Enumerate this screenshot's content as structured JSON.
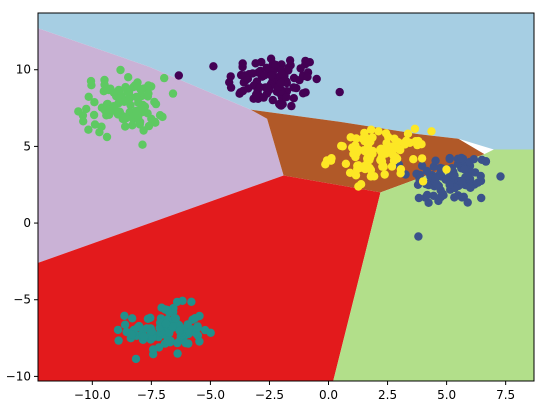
{
  "chart_data": {
    "type": "scatter",
    "title": "",
    "xlabel": "",
    "ylabel": "",
    "xlim": [
      -12.3,
      8.7
    ],
    "ylim": [
      -10.3,
      13.7
    ],
    "grid": false,
    "legend": "none",
    "x_ticks": [
      -10.0,
      -7.5,
      -5.0,
      -2.5,
      0.0,
      2.5,
      5.0,
      7.5
    ],
    "x_tick_labels": [
      "−10.0",
      "−7.5",
      "−5.0",
      "−2.5",
      "0.0",
      "2.5",
      "5.0",
      "7.5"
    ],
    "y_ticks": [
      10,
      5,
      0,
      -5,
      -10
    ],
    "y_tick_labels": [
      "10",
      "5",
      "0",
      "−5",
      "−10"
    ],
    "regions": [
      {
        "color": "#a6cee3",
        "polygon": [
          [
            -12.3,
            12.7
          ],
          [
            -7.6,
            10.2
          ],
          [
            -3.3,
            7.4
          ],
          [
            0.5,
            6.6
          ],
          [
            3.8,
            5.8
          ],
          [
            5.5,
            5.5
          ],
          [
            7.0,
            4.8
          ],
          [
            8.7,
            4.8
          ],
          [
            8.7,
            13.7
          ],
          [
            -12.3,
            13.7
          ]
        ]
      },
      {
        "color": "#cab2d6",
        "polygon": [
          [
            -12.3,
            12.7
          ],
          [
            -7.6,
            10.2
          ],
          [
            -3.3,
            7.4
          ],
          [
            -2.6,
            6.8
          ],
          [
            -1.9,
            3.1
          ],
          [
            -12.3,
            -2.6
          ]
        ]
      },
      {
        "color": "#b15928",
        "polygon": [
          [
            -3.3,
            7.4
          ],
          [
            0.5,
            6.6
          ],
          [
            3.8,
            5.8
          ],
          [
            5.5,
            5.5
          ],
          [
            6.6,
            4.5
          ],
          [
            2.2,
            2.0
          ],
          [
            -1.9,
            3.1
          ],
          [
            -2.6,
            6.8
          ]
        ]
      },
      {
        "color": "#e31a1c",
        "polygon": [
          [
            -12.3,
            -2.6
          ],
          [
            -1.9,
            3.1
          ],
          [
            2.2,
            2.0
          ],
          [
            0.2,
            -10.3
          ],
          [
            -12.3,
            -10.3
          ]
        ]
      },
      {
        "color": "#b2df8a",
        "polygon": [
          [
            2.2,
            2.0
          ],
          [
            6.6,
            4.5
          ],
          [
            7.0,
            4.8
          ],
          [
            8.7,
            4.8
          ],
          [
            8.7,
            -10.3
          ],
          [
            0.2,
            -10.3
          ]
        ]
      }
    ],
    "series": [
      {
        "color": "#440154",
        "cx": -2.3,
        "cy": 9.2,
        "sx": 1.0,
        "sy": 0.9,
        "n": 100
      },
      {
        "color": "#3b528b",
        "cx": 5.2,
        "cy": 2.9,
        "sx": 0.9,
        "sy": 0.9,
        "n": 100
      },
      {
        "color": "#21918c",
        "cx": -6.9,
        "cy": -7.0,
        "sx": 0.8,
        "sy": 0.8,
        "n": 100
      },
      {
        "color": "#5ec962",
        "cx": -8.7,
        "cy": 7.7,
        "sx": 0.9,
        "sy": 0.9,
        "n": 100
      },
      {
        "color": "#fde725",
        "cx": 2.2,
        "cy": 4.4,
        "sx": 1.0,
        "sy": 0.8,
        "n": 100
      }
    ]
  }
}
